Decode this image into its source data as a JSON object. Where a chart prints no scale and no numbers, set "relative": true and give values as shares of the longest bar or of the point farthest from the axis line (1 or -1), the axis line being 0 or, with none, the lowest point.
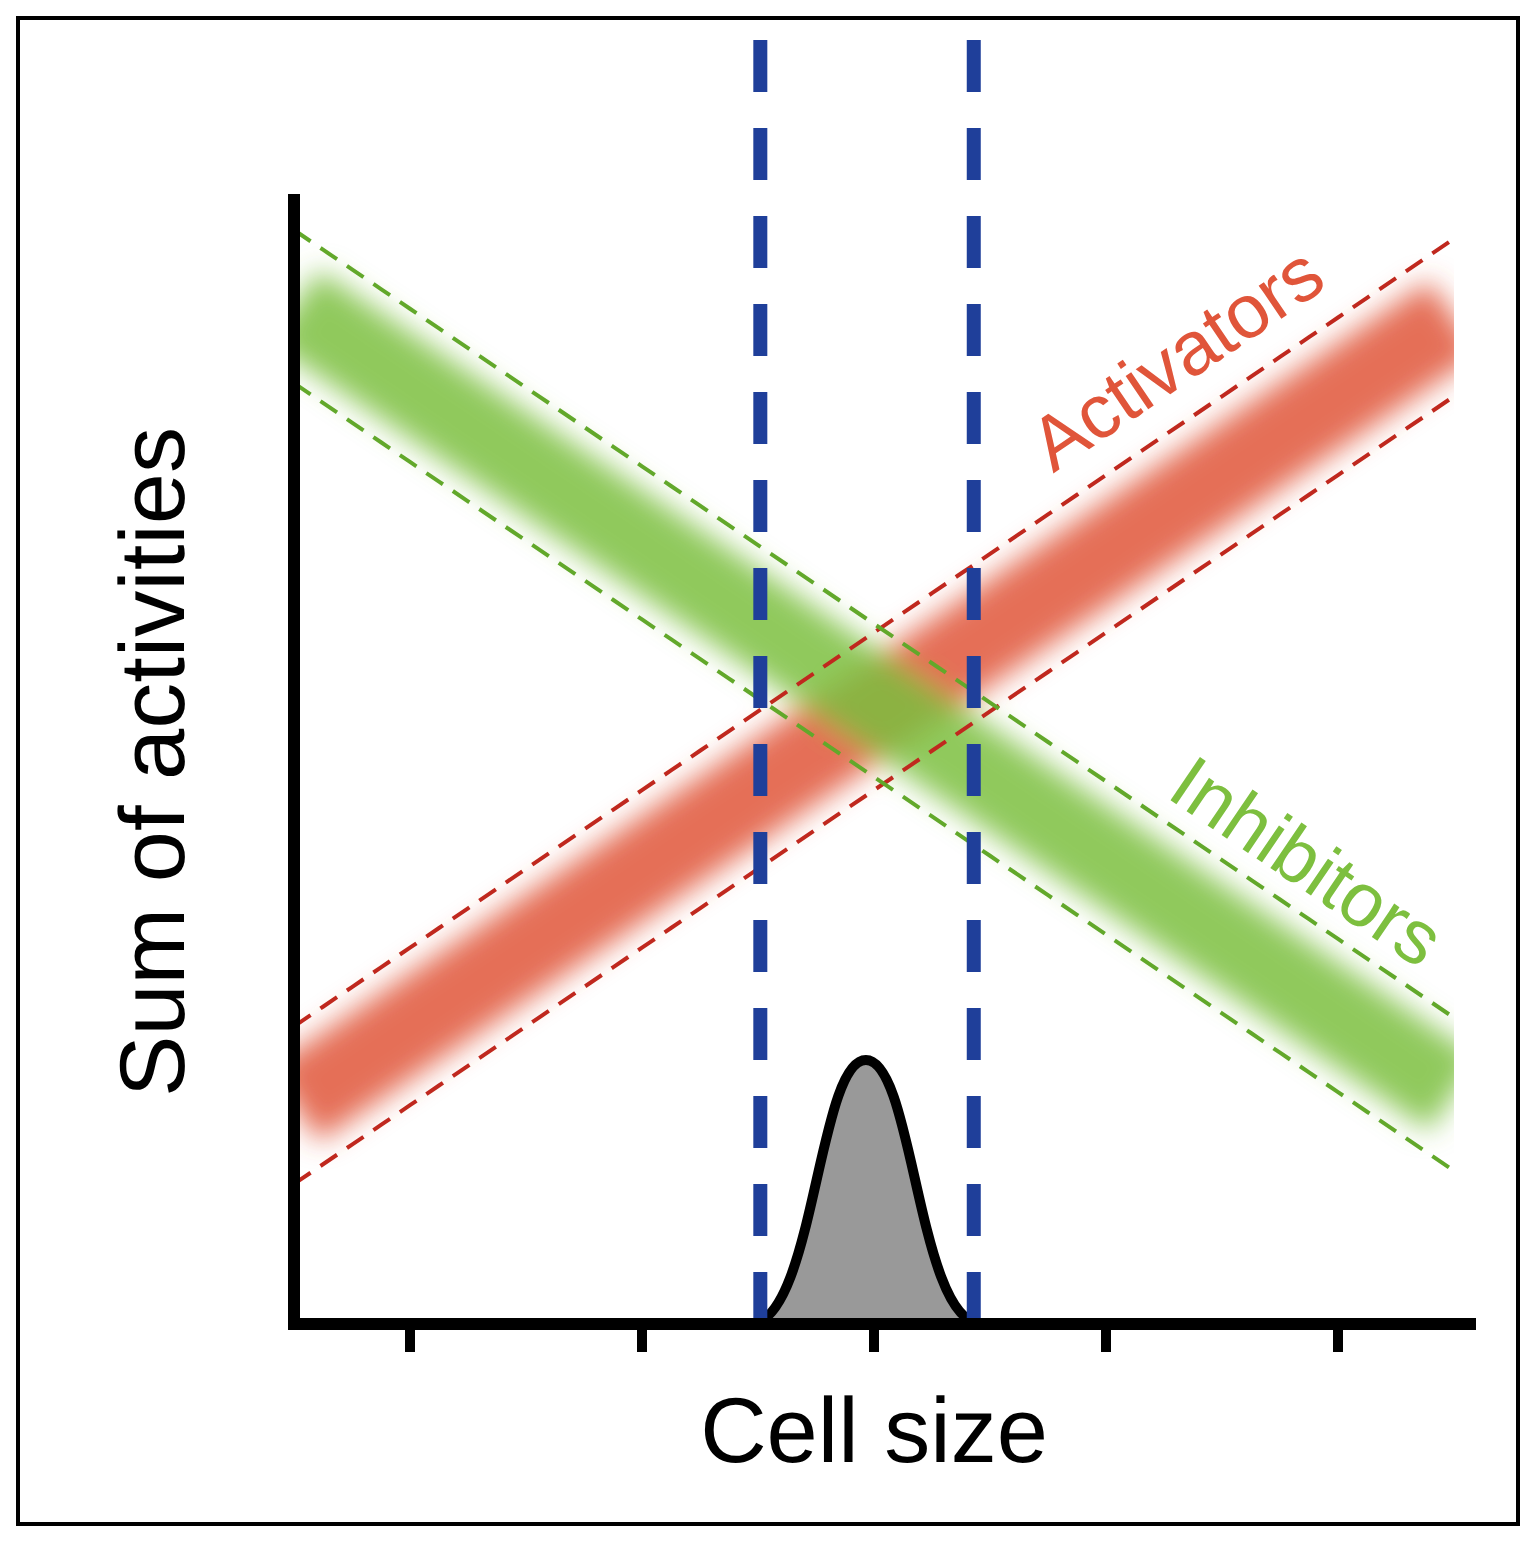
{
  "chart_data": {
    "type": "line",
    "xlabel": "Cell size",
    "ylabel": "Sum of activities",
    "relative": true,
    "categories": [
      null,
      null,
      null,
      null,
      null,
      null,
      null,
      null,
      null,
      null,
      null,
      null,
      null,
      null,
      null,
      null,
      null,
      null,
      null,
      null,
      null,
      null,
      null,
      null,
      null,
      null,
      null,
      null,
      null,
      null,
      null,
      null,
      null,
      null,
      null,
      null,
      null,
      null,
      null,
      null,
      null
    ],
    "series": [
      {
        "name": "Activators",
        "color": "#e0553a",
        "values": [
          0.2,
          0.218,
          0.236,
          0.254,
          0.272,
          0.29,
          0.308,
          0.326,
          0.344,
          0.362,
          0.38,
          0.398,
          0.416,
          0.434,
          0.452,
          0.47,
          0.488,
          0.506,
          0.524,
          0.542,
          0.56,
          0.578,
          0.596,
          0.614,
          0.632,
          0.65,
          0.668,
          0.686,
          0.704,
          0.722,
          0.74,
          0.758,
          0.776,
          0.794,
          0.812,
          0.83,
          0.848,
          0.866,
          0.884,
          0.902,
          0.92
        ]
      },
      {
        "color": "#c0281e",
        "line_style": "dashed",
        "values": [
          0.128,
          0.146,
          0.164,
          0.182,
          0.2,
          0.218,
          0.236,
          0.254,
          0.272,
          0.29,
          0.308,
          0.326,
          0.344,
          0.362,
          0.38,
          0.398,
          0.416,
          0.434,
          0.452,
          0.47,
          0.488,
          0.506,
          0.524,
          0.542,
          0.56,
          0.578,
          0.596,
          0.614,
          0.632,
          0.65,
          0.668,
          0.686,
          0.704,
          0.722,
          0.74,
          0.758,
          0.776,
          0.794,
          0.812,
          0.83,
          0.848
        ]
      },
      {
        "color": "#c0281e",
        "line_style": "dashed",
        "values": [
          0.272,
          0.29,
          0.308,
          0.326,
          0.344,
          0.362,
          0.38,
          0.398,
          0.416,
          0.434,
          0.452,
          0.47,
          0.488,
          0.506,
          0.524,
          0.542,
          0.56,
          0.578,
          0.596,
          0.614,
          0.632,
          0.65,
          0.668,
          0.686,
          0.704,
          0.722,
          0.74,
          0.758,
          0.776,
          0.794,
          0.812,
          0.83,
          0.848,
          0.866,
          0.884,
          0.902,
          0.92,
          0.938,
          0.956,
          0.974,
          0.992
        ]
      },
      {
        "name": "Inhibitors",
        "color": "#7dbf3f",
        "values": [
          0.93,
          0.912,
          0.894,
          0.876,
          0.858,
          0.84,
          0.822,
          0.804,
          0.786,
          0.768,
          0.75,
          0.732,
          0.714,
          0.696,
          0.678,
          0.66,
          0.642,
          0.624,
          0.606,
          0.588,
          0.57,
          0.552,
          0.534,
          0.516,
          0.498,
          0.48,
          0.462,
          0.444,
          0.426,
          0.408,
          0.39,
          0.372,
          0.354,
          0.336,
          0.318,
          0.3,
          0.282,
          0.264,
          0.246,
          0.228,
          0.21
        ]
      },
      {
        "color": "#62a82a",
        "line_style": "dashed",
        "values": [
          0.86,
          0.842,
          0.824,
          0.806,
          0.788,
          0.77,
          0.752,
          0.734,
          0.716,
          0.698,
          0.68,
          0.662,
          0.644,
          0.626,
          0.608,
          0.59,
          0.572,
          0.554,
          0.536,
          0.518,
          0.5,
          0.482,
          0.464,
          0.446,
          0.428,
          0.41,
          0.392,
          0.374,
          0.356,
          0.338,
          0.32,
          0.302,
          0.284,
          0.266,
          0.248,
          0.23,
          0.212,
          0.194,
          0.176,
          0.158,
          0.14
        ]
      },
      {
        "color": "#62a82a",
        "line_style": "dashed",
        "values": [
          1,
          0.982,
          0.964,
          0.946,
          0.928,
          0.91,
          0.892,
          0.874,
          0.856,
          0.838,
          0.82,
          0.802,
          0.784,
          0.766,
          0.748,
          0.73,
          0.712,
          0.694,
          0.676,
          0.658,
          0.64,
          0.622,
          0.604,
          0.586,
          0.568,
          0.55,
          0.532,
          0.514,
          0.496,
          0.478,
          0.46,
          0.442,
          0.424,
          0.406,
          0.388,
          0.37,
          0.352,
          0.334,
          0.316,
          0.298,
          0.28
        ]
      }
    ]
  }
}
